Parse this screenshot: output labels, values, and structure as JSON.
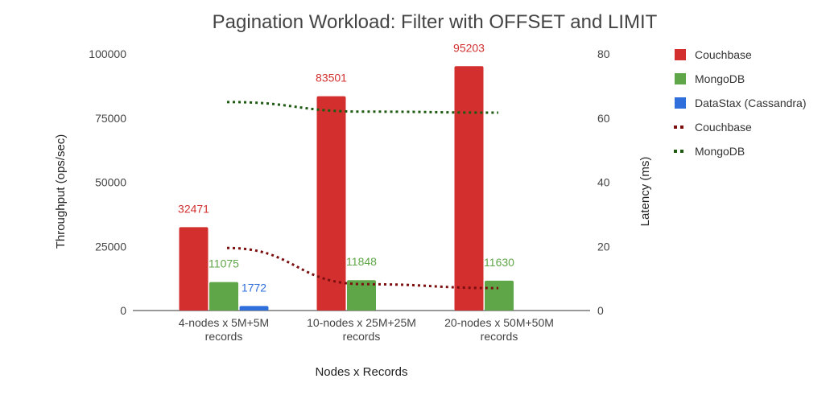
{
  "chart_data": {
    "type": "bar",
    "title": "Pagination Workload: Filter with OFFSET and LIMIT",
    "xlabel": "Nodes x Records",
    "ylabel": "Throughput (ops/sec)",
    "y2label": "Latency (ms)",
    "categories": [
      [
        "4-nodes x 5M+5M",
        "records"
      ],
      [
        "10-nodes x 25M+25M",
        "records"
      ],
      [
        "20-nodes x 50M+50M",
        "records"
      ]
    ],
    "ylim": [
      0,
      100000
    ],
    "yticks": [
      "0",
      "25000",
      "50000",
      "75000",
      "100000"
    ],
    "y2lim": [
      0,
      80
    ],
    "y2ticks": [
      "0",
      "20",
      "40",
      "60",
      "80"
    ],
    "grid": false,
    "legend_position": "right",
    "series": [
      {
        "name": "Couchbase",
        "kind": "bar",
        "color": "#d32f2f",
        "values": [
          32471,
          83501,
          95203
        ],
        "labels": [
          "32471",
          "83501",
          "95203"
        ]
      },
      {
        "name": "MongoDB",
        "kind": "bar",
        "color": "#5fa648",
        "values": [
          11075,
          11848,
          11630
        ],
        "labels": [
          "11075",
          "11848",
          "11630"
        ]
      },
      {
        "name": "DataStax (Cassandra)",
        "kind": "bar",
        "color": "#2f6fdc",
        "values": [
          1772,
          null,
          null
        ],
        "labels": [
          "1772",
          "",
          ""
        ]
      }
    ],
    "trend_lines": [
      {
        "name": "Couchbase",
        "color": "#7b0f0f",
        "axis": "latency",
        "values": [
          19.5,
          8.2,
          7.0
        ]
      },
      {
        "name": "MongoDB",
        "color": "#1e5a12",
        "axis": "latency",
        "values": [
          65.0,
          62.0,
          61.7
        ]
      }
    ]
  }
}
